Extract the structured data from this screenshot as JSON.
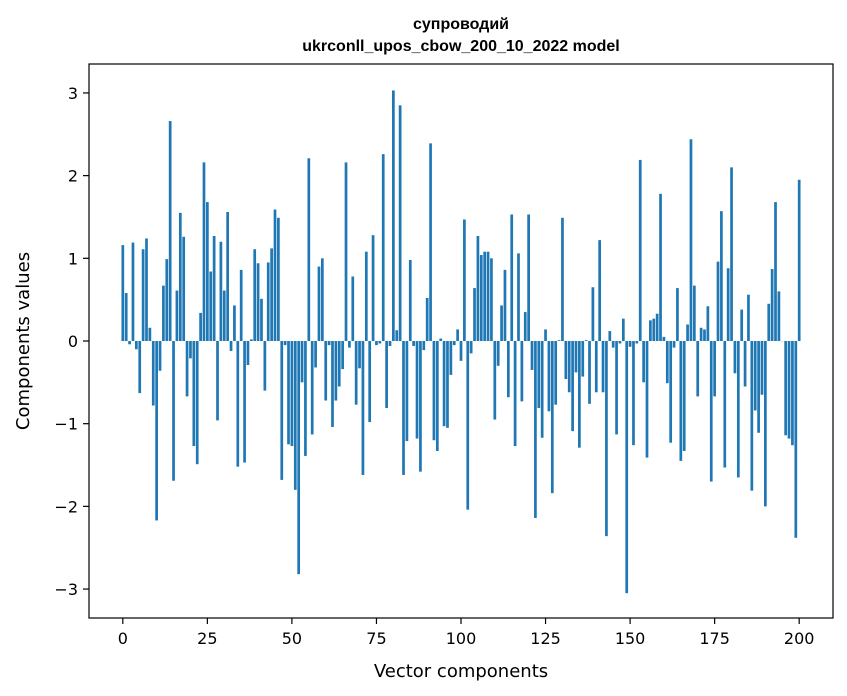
{
  "chart_data": {
    "type": "bar",
    "title_line1": "супроводий",
    "title_line2": "ukrconll_upos_cbow_200_10_2022 model",
    "xlabel": "Vector components",
    "ylabel": "Components values",
    "xlim": [
      -10,
      210
    ],
    "ylim": [
      -3.35,
      3.35
    ],
    "xticks": [
      0,
      25,
      50,
      75,
      100,
      125,
      150,
      175,
      200
    ],
    "yticks": [
      -3,
      -2,
      -1,
      0,
      1,
      2,
      3
    ],
    "ytick_labels": [
      "−3",
      "−2",
      "−1",
      "0",
      "1",
      "2",
      "3"
    ],
    "bar_color": "#1f77b4",
    "grid": false,
    "values": [
      1.16,
      0.58,
      -0.04,
      1.19,
      -0.1,
      -0.63,
      1.11,
      1.24,
      0.16,
      -0.78,
      -2.17,
      -0.36,
      0.67,
      0.99,
      2.66,
      -1.69,
      0.61,
      1.55,
      1.26,
      -0.67,
      -0.21,
      -1.27,
      -1.49,
      0.34,
      2.16,
      1.68,
      0.84,
      1.27,
      -0.96,
      1.2,
      0.61,
      1.56,
      -0.12,
      0.43,
      -1.52,
      0.86,
      -1.47,
      -0.29,
      0.02,
      1.11,
      0.94,
      0.51,
      -0.6,
      0.95,
      1.12,
      1.59,
      1.49,
      -1.68,
      -0.05,
      -1.25,
      -1.27,
      -1.8,
      -2.82,
      -0.5,
      -1.39,
      2.21,
      -1.13,
      -0.32,
      0.9,
      1.0,
      -0.72,
      -0.05,
      -1.04,
      -0.72,
      -0.55,
      -0.34,
      2.16,
      -0.08,
      0.78,
      -0.77,
      -0.33,
      -1.62,
      1.08,
      -0.98,
      1.28,
      -0.05,
      -0.03,
      2.26,
      -0.81,
      -0.06,
      3.03,
      0.13,
      2.85,
      -1.62,
      -1.21,
      0.98,
      -0.06,
      -1.18,
      -1.58,
      -0.11,
      0.52,
      2.39,
      -1.2,
      -1.33,
      0.03,
      -1.03,
      -1.05,
      -0.41,
      -0.05,
      0.14,
      -0.24,
      1.47,
      -2.04,
      -0.15,
      0.64,
      1.27,
      1.04,
      1.08,
      1.08,
      1.0,
      -0.95,
      -0.3,
      0.43,
      0.86,
      -0.68,
      1.53,
      -1.27,
      1.06,
      -0.73,
      0.35,
      1.53,
      -0.35,
      -2.14,
      -0.81,
      -1.17,
      0.14,
      -0.85,
      -1.84,
      -0.77,
      0.01,
      1.49,
      -0.46,
      -0.62,
      -1.09,
      -0.38,
      -1.29,
      -0.43,
      0.01,
      -0.76,
      0.65,
      -0.62,
      1.22,
      -0.62,
      -2.36,
      0.12,
      -0.08,
      -1.13,
      -0.03,
      0.27,
      -3.05,
      -0.07,
      -1.26,
      -0.03,
      2.19,
      -0.5,
      -1.41,
      0.25,
      0.27,
      0.33,
      1.78,
      0.05,
      -0.51,
      -1.23,
      -0.08,
      0.64,
      -1.45,
      -1.33,
      0.2,
      2.44,
      0.67,
      -0.67,
      0.16,
      0.14,
      0.42,
      -1.7,
      -0.67,
      0.96,
      1.57,
      -1.53,
      0.88,
      2.1,
      -0.39,
      -1.65,
      0.38,
      -0.55,
      0.56,
      -1.81,
      -0.84,
      -1.11,
      -0.65,
      -2.0,
      0.45,
      0.87,
      1.68,
      0.6,
      0.0,
      -1.14,
      -1.18,
      -1.26,
      -2.38,
      1.95
    ]
  }
}
